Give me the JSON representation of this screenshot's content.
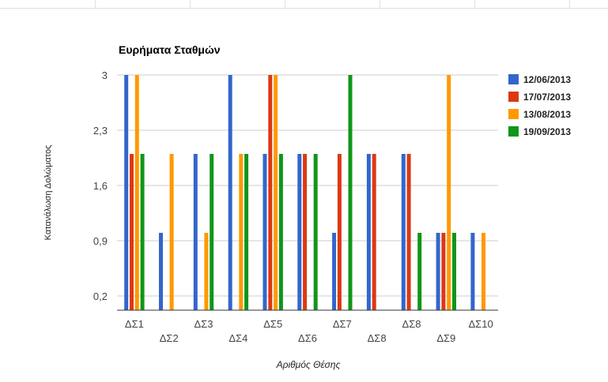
{
  "chart_data": {
    "type": "bar",
    "title": "Ευρήματα Σταθμών",
    "xlabel": "Αριθμός Θέσης",
    "ylabel": "Κατανάλωση Δολώματος",
    "categories": [
      "ΔΣ1",
      "ΔΣ2",
      "ΔΣ3",
      "ΔΣ4",
      "ΔΣ5",
      "ΔΣ6",
      "ΔΣ7",
      "ΔΣ8",
      "ΔΣ8",
      "ΔΣ9",
      "ΔΣ10"
    ],
    "ylim": [
      0,
      3
    ],
    "yticks": [
      0.2,
      0.9,
      1.6,
      2.3,
      3
    ],
    "ytick_labels": [
      "0,2",
      "0,9",
      "1,6",
      "2,3",
      "3"
    ],
    "grid": true,
    "legend_position": "right",
    "series": [
      {
        "name": "12/06/2013",
        "color": "#3366cc",
        "values": [
          3,
          1,
          2,
          3,
          2,
          2,
          1,
          2,
          2,
          1,
          1
        ]
      },
      {
        "name": "17/07/2013",
        "color": "#dc3912",
        "values": [
          2,
          0,
          0,
          0,
          3,
          2,
          2,
          2,
          2,
          1,
          0
        ]
      },
      {
        "name": "13/08/2013",
        "color": "#ff9900",
        "values": [
          3,
          2,
          1,
          2,
          3,
          0,
          0,
          0,
          0,
          3,
          1
        ]
      },
      {
        "name": "19/09/2013",
        "color": "#109618",
        "values": [
          2,
          0,
          2,
          2,
          2,
          2,
          3,
          0,
          1,
          1,
          0
        ]
      }
    ]
  }
}
